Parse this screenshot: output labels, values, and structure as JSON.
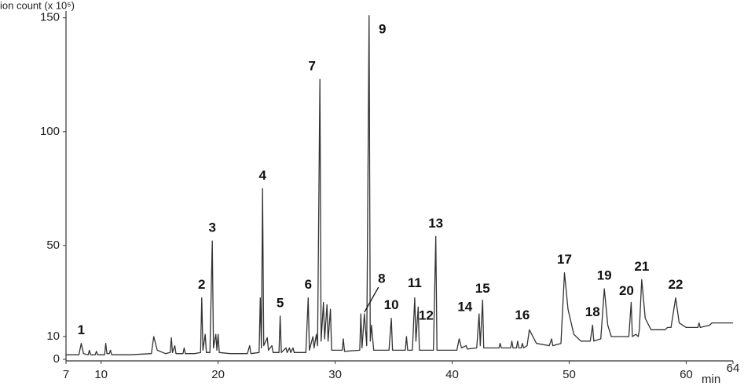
{
  "chart_data": {
    "type": "line",
    "ylabel": "ion count (x 10⁵)",
    "xlabel": "min",
    "xlim": [
      7,
      64
    ],
    "xticks": [
      7,
      10,
      20,
      30,
      40,
      50,
      60,
      64
    ],
    "ylim": [
      0,
      153
    ],
    "yticks": [
      0,
      10,
      50,
      100,
      150
    ],
    "color": "#333333",
    "series": [
      {
        "x": [
          7,
          8.1,
          8.3,
          8.5,
          8.9,
          9.0,
          9.1,
          9.5,
          9.6,
          9.7,
          10.3,
          10.4,
          10.5,
          10.7,
          10.8,
          10.9,
          12.5,
          14.3,
          14.5,
          14.8,
          15.5,
          15.9,
          16.0,
          16.1,
          16.3,
          16.4,
          17.0,
          17.1,
          17.2,
          18.0,
          18.5,
          18.6,
          18.7,
          18.9,
          19.0,
          19.3,
          19.5,
          19.6,
          19.8,
          19.9,
          20.0,
          20.1,
          21,
          22.5,
          22.7,
          22.8,
          23.5,
          23.6,
          23.7,
          23.8,
          23.9,
          24.2,
          24.3,
          24.6,
          24.7,
          25.2,
          25.3,
          25.4,
          25.8,
          25.9,
          26.1,
          26.2,
          26.4,
          26.5,
          27.5,
          27.7,
          27.8,
          28.1,
          28.2,
          28.4,
          28.5,
          28.7,
          28.8,
          29.0,
          29.1,
          29.3,
          29.4,
          29.6,
          29.7,
          30.6,
          30.7,
          30.8,
          32.1,
          32.2,
          32.3,
          32.5,
          32.7,
          32.9,
          33.0,
          33.1,
          33.3,
          34.6,
          34.8,
          34.9,
          36.0,
          36.1,
          36.2,
          36.6,
          36.8,
          36.9,
          37.1,
          37.2,
          38.4,
          38.6,
          38.7,
          40.4,
          40.6,
          40.8,
          41.2,
          41.3,
          42.1,
          42.3,
          42.4,
          42.6,
          42.7,
          44.0,
          44.1,
          44.2,
          45.0,
          45.1,
          45.2,
          45.5,
          45.6,
          45.7,
          45.9,
          46.0,
          46.1,
          46.4,
          46.6,
          47.2,
          48.3,
          48.5,
          48.6,
          49.3,
          49.6,
          49.9,
          50.4,
          51.0,
          51.8,
          52.0,
          52.1,
          52.7,
          53.0,
          53.3,
          53.6,
          55.1,
          55.3,
          55.4,
          55.7,
          55.9,
          56.0,
          56.2,
          56.5,
          57.0,
          58.2,
          58.4,
          58.7,
          59.1,
          59.4,
          60,
          61.0,
          61.1,
          61.2,
          62.0,
          62.2,
          63,
          64
        ],
        "values": [
          2,
          2,
          7,
          2.5,
          2,
          4,
          2,
          2,
          3.5,
          2,
          2,
          7,
          2.5,
          2.5,
          4,
          2,
          2,
          2.5,
          10,
          4,
          2.5,
          3,
          9.5,
          3,
          6,
          2.5,
          2.5,
          5,
          2.5,
          2.5,
          3,
          27,
          4,
          11,
          3,
          3,
          52,
          5,
          11,
          4,
          11,
          3,
          2.5,
          2.5,
          6,
          2.5,
          3,
          27,
          5,
          75,
          6,
          9.5,
          4,
          6,
          3,
          3,
          19,
          3,
          5,
          3,
          5,
          3,
          5,
          3,
          3,
          27,
          4,
          10,
          5,
          11,
          6,
          123,
          8,
          25,
          9,
          24,
          8,
          22,
          4,
          4,
          9,
          3.5,
          4,
          20,
          5,
          20,
          6,
          151,
          8,
          15,
          4,
          4,
          18,
          4,
          4,
          10,
          4,
          4,
          27,
          8,
          23,
          4,
          4,
          54,
          4,
          4,
          9,
          5,
          6,
          4.5,
          5,
          20,
          6,
          26,
          5,
          5,
          7,
          5,
          5,
          8,
          5,
          5,
          8,
          5,
          5,
          7,
          5,
          6,
          13,
          7,
          6,
          9,
          6,
          7,
          38,
          22,
          11,
          8,
          8,
          15,
          8,
          9,
          31,
          15,
          10,
          10,
          25,
          10,
          11,
          10,
          13,
          35,
          18,
          13,
          13,
          14,
          14,
          27,
          16,
          14,
          14,
          16,
          14,
          15,
          16,
          16,
          16
        ]
      }
    ],
    "peaks": [
      {
        "label": "1",
        "time": 8.3,
        "height": 7
      },
      {
        "label": "2",
        "time": 18.6,
        "height": 27
      },
      {
        "label": "3",
        "time": 19.5,
        "height": 52
      },
      {
        "label": "4",
        "time": 23.8,
        "height": 75
      },
      {
        "label": "5",
        "time": 25.3,
        "height": 19
      },
      {
        "label": "6",
        "time": 27.7,
        "height": 27
      },
      {
        "label": "7",
        "time": 28.7,
        "height": 123
      },
      {
        "label": "8",
        "time": 32.5,
        "height": 20
      },
      {
        "label": "9",
        "time": 32.9,
        "height": 151
      },
      {
        "label": "10",
        "time": 34.8,
        "height": 18
      },
      {
        "label": "11",
        "time": 36.8,
        "height": 27
      },
      {
        "label": "12",
        "time": 37.1,
        "height": 23
      },
      {
        "label": "13",
        "time": 38.6,
        "height": 54
      },
      {
        "label": "14",
        "time": 42.3,
        "height": 20
      },
      {
        "label": "15",
        "time": 42.6,
        "height": 26
      },
      {
        "label": "16",
        "time": 46.6,
        "height": 13
      },
      {
        "label": "17",
        "time": 49.6,
        "height": 38
      },
      {
        "label": "18",
        "time": 52.0,
        "height": 15
      },
      {
        "label": "19",
        "time": 53.0,
        "height": 31
      },
      {
        "label": "20",
        "time": 55.3,
        "height": 25
      },
      {
        "label": "21",
        "time": 56.2,
        "height": 35
      },
      {
        "label": "22",
        "time": 59.1,
        "height": 27
      }
    ]
  }
}
